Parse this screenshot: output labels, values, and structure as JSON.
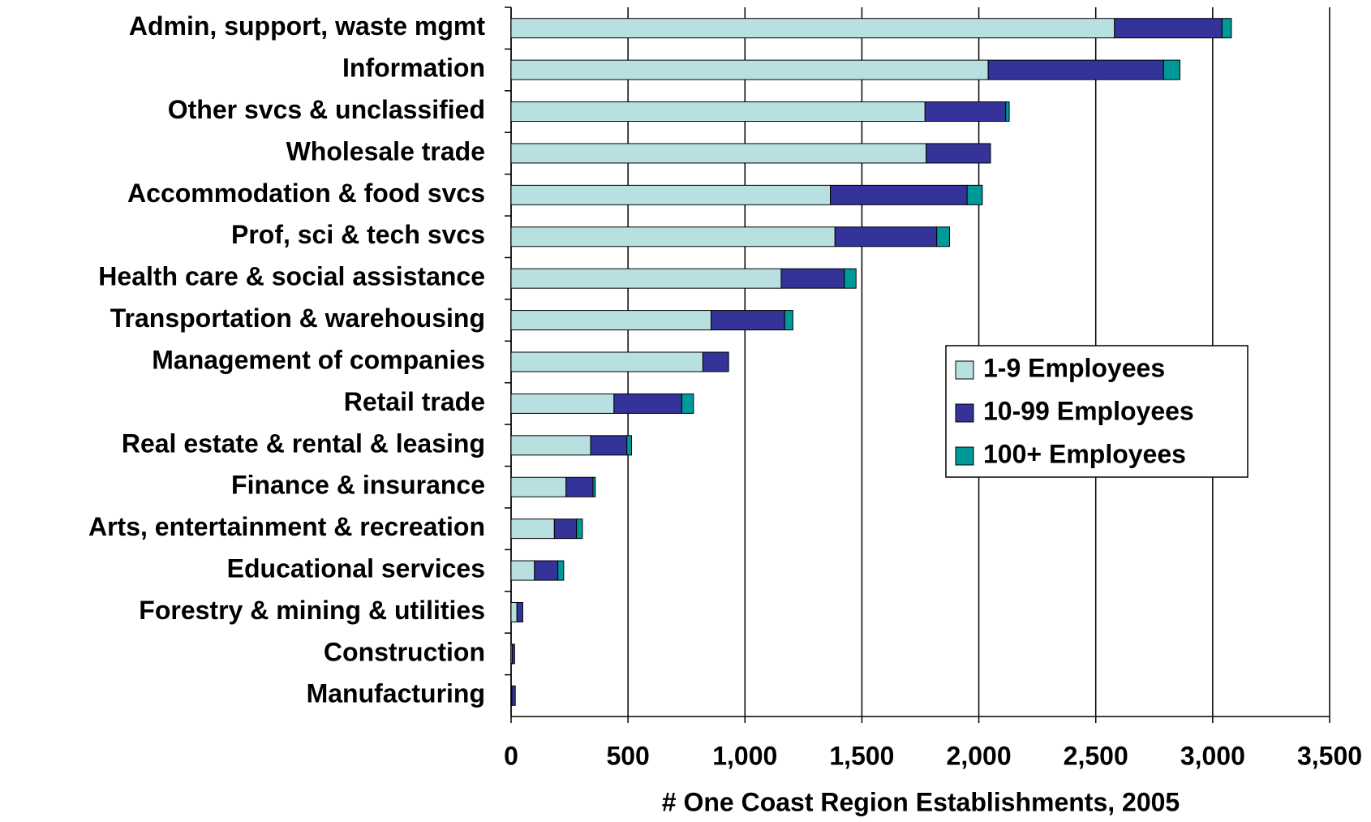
{
  "chart_data": {
    "type": "stacked-bar-horizontal",
    "x_label": "# One Coast Region Establishments, 2005",
    "categories": [
      "Admin, support, waste mgmt",
      "Information",
      "Other svcs & unclassified",
      "Wholesale trade",
      "Accommodation & food svcs",
      "Prof, sci & tech svcs",
      "Health care & social assistance",
      "Transportation & warehousing",
      "Management of companies",
      "Retail trade",
      "Real estate & rental & leasing",
      "Finance & insurance",
      "Arts, entertainment & recreation",
      "Educational services",
      "Forestry & mining & utilities",
      "Construction",
      "Manufacturing"
    ],
    "series": [
      {
        "name": "1-9 Employees",
        "color": "#b8e0e0",
        "values": [
          2580,
          2040,
          1770,
          1775,
          1365,
          1385,
          1155,
          855,
          820,
          440,
          340,
          235,
          185,
          100,
          25,
          5,
          3
        ]
      },
      {
        "name": "10-99 Employees",
        "color": "#333399",
        "values": [
          460,
          750,
          345,
          275,
          585,
          435,
          270,
          315,
          110,
          290,
          155,
          115,
          95,
          100,
          25,
          10,
          15
        ]
      },
      {
        "name": "100+ Employees",
        "color": "#009999",
        "values": [
          40,
          70,
          15,
          0,
          65,
          55,
          50,
          35,
          0,
          50,
          20,
          10,
          25,
          25,
          0,
          0,
          0
        ]
      }
    ],
    "xlim": [
      0,
      3500
    ],
    "xticks": [
      0,
      500,
      {
        "value": 1000,
        "label": "1,000"
      },
      {
        "value": 1500,
        "label": "1,500"
      },
      {
        "value": 2000,
        "label": "2,000"
      },
      {
        "value": 2500,
        "label": "2,500"
      },
      {
        "value": 3000,
        "label": "3,000"
      },
      {
        "value": 3500,
        "label": "3,500"
      }
    ],
    "grid": true,
    "legend": "right"
  }
}
